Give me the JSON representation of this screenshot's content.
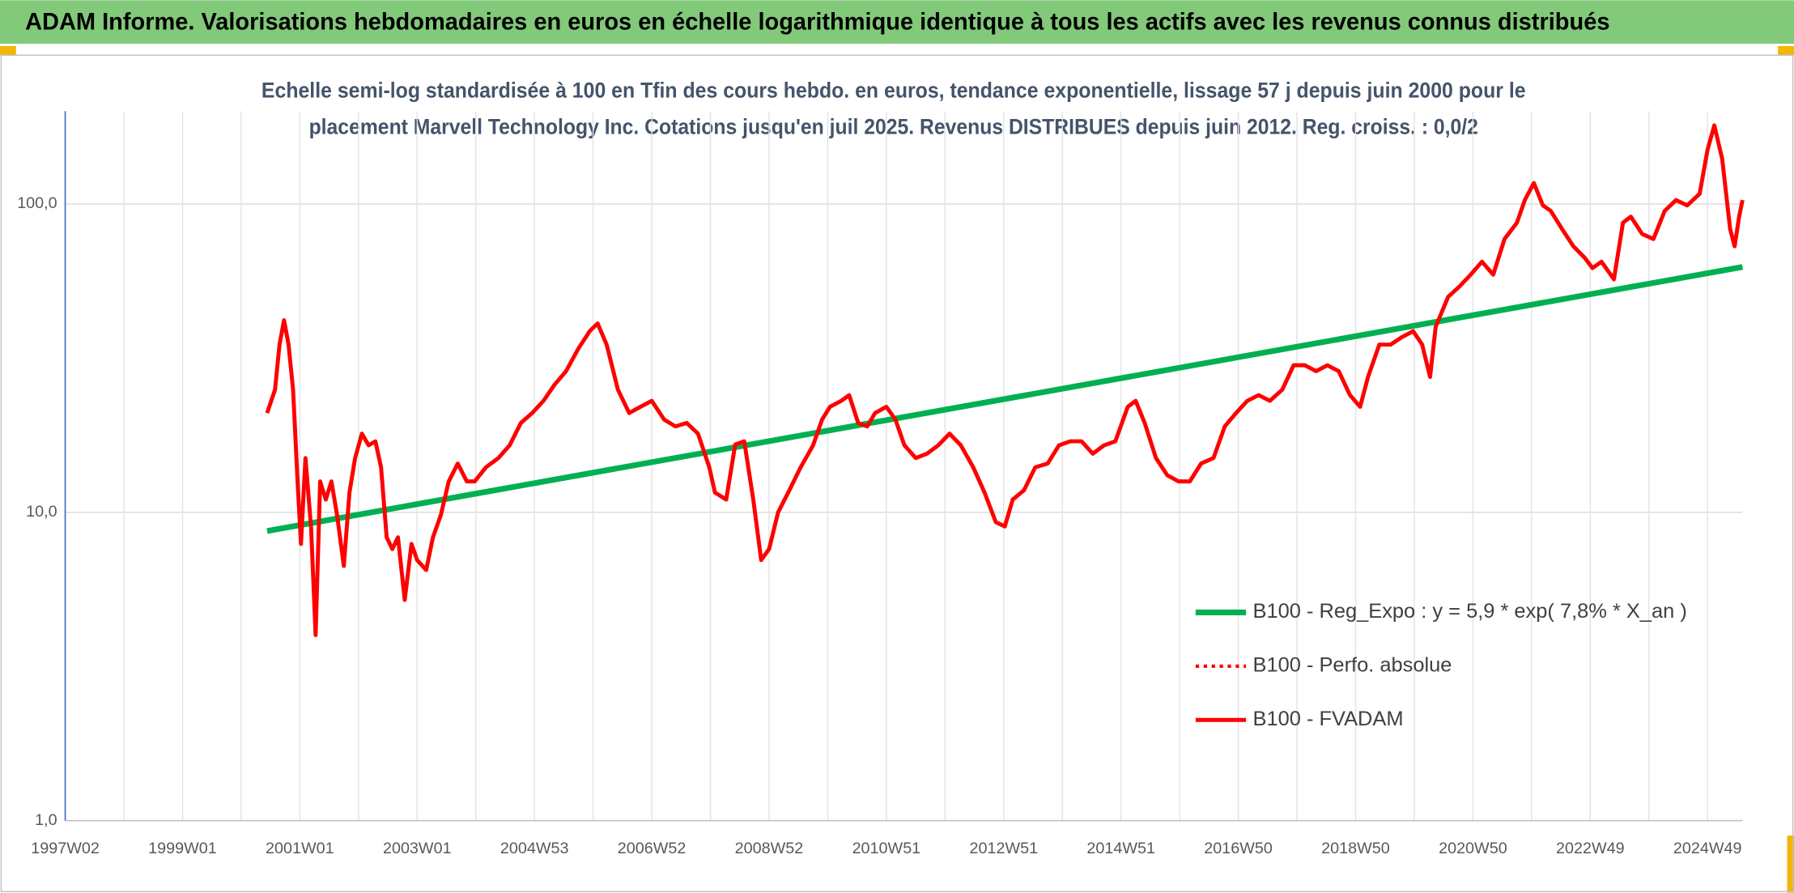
{
  "chart_data": {
    "type": "line",
    "title": "ADAM Informe. Valorisations hebdomadaires en euros en échelle logarithmique identique à tous les actifs avec les revenus connus distribués",
    "subtitle": [
      "Echelle semi-log standardisée à 100 en Tfin des cours hebdo. en euros, tendance exponentielle, lissage 57 j depuis juin 2000 pour le",
      "placement Marvell Technology Inc. Cotations jusqu'en juil 2025. Revenus DISTRIBUES depuis juin 2012. Reg. croiss. : 0,0/2"
    ],
    "log_scale": true,
    "grid": true,
    "minor_grid": true,
    "legend": "center-right",
    "ylim": [
      1,
      200
    ],
    "yticks": [
      {
        "value": 1,
        "label": "1,0"
      },
      {
        "value": 10,
        "label": "10,0"
      },
      {
        "value": 100,
        "label": "100,0"
      }
    ],
    "xlim": [
      0,
      1487
    ],
    "xticks": [
      {
        "value": 0,
        "label": "1997W02"
      },
      {
        "value": 104,
        "label": "1999W01"
      },
      {
        "value": 208,
        "label": "2001W01"
      },
      {
        "value": 312,
        "label": "2003W01"
      },
      {
        "value": 416,
        "label": "2004W53"
      },
      {
        "value": 520,
        "label": "2006W52"
      },
      {
        "value": 624,
        "label": "2008W52"
      },
      {
        "value": 728,
        "label": "2010W51"
      },
      {
        "value": 832,
        "label": "2012W51"
      },
      {
        "value": 936,
        "label": "2014W51"
      },
      {
        "value": 1040,
        "label": "2016W50"
      },
      {
        "value": 1144,
        "label": "2018W50"
      },
      {
        "value": 1248,
        "label": "2020W50"
      },
      {
        "value": 1352,
        "label": "2022W49"
      },
      {
        "value": 1456,
        "label": "2024W49"
      }
    ],
    "series": [
      {
        "name": "B100 - Reg_Expo : y = 5,9 * exp( 7,8% *  X_an )",
        "color": "#00b050",
        "width": 5,
        "dash": "solid",
        "x": [
          179,
          1487
        ],
        "values": [
          8.7,
          62.5
        ]
      },
      {
        "name": "B100 - Perfo. absolue",
        "color": "#ff0000",
        "width": 3,
        "dash": "dotted"
      },
      {
        "name": "B100 - FVADAM",
        "color": "#ff0000",
        "width": 3.5,
        "dash": "solid",
        "x": [
          179,
          186,
          190,
          194,
          198,
          202,
          206,
          209,
          213,
          218,
          222,
          226,
          231,
          236,
          241,
          247,
          252,
          257,
          263,
          269,
          275,
          280,
          285,
          290,
          295,
          301,
          307,
          312,
          320,
          326,
          333,
          340,
          348,
          356,
          363,
          373,
          384,
          394,
          404,
          414,
          424,
          434,
          444,
          455,
          465,
          472,
          480,
          490,
          500,
          510,
          520,
          531,
          541,
          551,
          561,
          571,
          576,
          586,
          594,
          602,
          610,
          617,
          624,
          632,
          642,
          652,
          663,
          671,
          678,
          688,
          695,
          703,
          711,
          718,
          728,
          736,
          744,
          754,
          764,
          774,
          784,
          794,
          805,
          815,
          825,
          833,
          840,
          850,
          860,
          871,
          881,
          891,
          901,
          911,
          921,
          931,
          942,
          949,
          957,
          967,
          977,
          987,
          997,
          1007,
          1018,
          1028,
          1038,
          1048,
          1058,
          1068,
          1079,
          1089,
          1099,
          1109,
          1119,
          1129,
          1139,
          1148,
          1155,
          1165,
          1175,
          1185,
          1195,
          1203,
          1210,
          1215,
          1226,
          1236,
          1246,
          1256,
          1266,
          1276,
          1287,
          1294,
          1302,
          1310,
          1317,
          1327,
          1337,
          1347,
          1354,
          1362,
          1373,
          1381,
          1388,
          1398,
          1408,
          1418,
          1428,
          1438,
          1449,
          1456,
          1462,
          1469,
          1476,
          1480,
          1484,
          1487
        ],
        "values": [
          21,
          25,
          35,
          42,
          35,
          25,
          12.6,
          7.9,
          15,
          8.9,
          4,
          12.6,
          11,
          12.6,
          9.8,
          6.7,
          11.6,
          15,
          18,
          16.5,
          17,
          14,
          8.3,
          7.6,
          8.3,
          5.2,
          7.9,
          7,
          6.5,
          8.3,
          9.8,
          12.6,
          14.4,
          12.6,
          12.6,
          14,
          15,
          16.5,
          19.5,
          21,
          23,
          26,
          28.7,
          34,
          38.7,
          41,
          35,
          25,
          21,
          22,
          23,
          20,
          19,
          19.5,
          18,
          14,
          11.6,
          11,
          16.6,
          17,
          11,
          7,
          7.6,
          10,
          11.8,
          14,
          16.5,
          20,
          22,
          23,
          24,
          19.5,
          19,
          21,
          22,
          20,
          16.5,
          15,
          15.5,
          16.5,
          18,
          16.5,
          14,
          11.6,
          9.3,
          9,
          11,
          11.8,
          14,
          14.4,
          16.5,
          17,
          17,
          15.5,
          16.5,
          17,
          22,
          23,
          19.5,
          15,
          13.2,
          12.6,
          12.6,
          14.4,
          15,
          19,
          21,
          23,
          24,
          23,
          25,
          30,
          30,
          28.7,
          30,
          28.7,
          24,
          22,
          27.5,
          35,
          35,
          37,
          38.7,
          35,
          27.5,
          40,
          50,
          54,
          59,
          65,
          59,
          77,
          87,
          103,
          117,
          99,
          95,
          83,
          73,
          67,
          62,
          65,
          57,
          87,
          91,
          80,
          77,
          95,
          103,
          99,
          108,
          150,
          180,
          140,
          83,
          73,
          91,
          103
        ]
      }
    ]
  }
}
